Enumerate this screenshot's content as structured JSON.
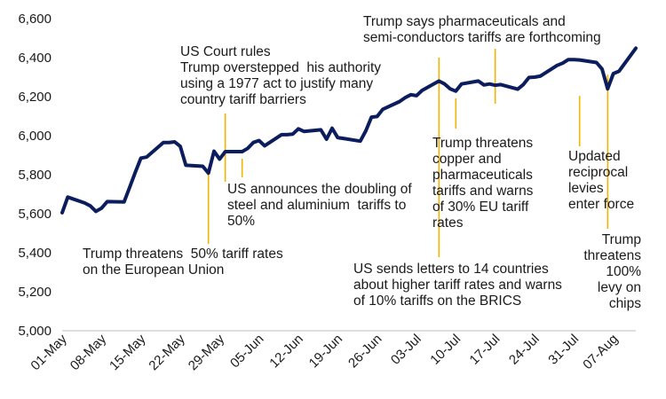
{
  "chart_data": {
    "type": "line",
    "ylim": [
      5000,
      6600
    ],
    "yticks": [
      "5,000",
      "5,200",
      "5,400",
      "5,600",
      "5,800",
      "6,000",
      "6,200",
      "6,400",
      "6,600"
    ],
    "ytick_values": [
      5000,
      5200,
      5400,
      5600,
      5800,
      6000,
      6200,
      6400,
      6600
    ],
    "xticks": [
      "01-May",
      "08-May",
      "15-May",
      "22-May",
      "29-May",
      "05-Jun",
      "12-Jun",
      "19-Jun",
      "26-Jun",
      "03-Jul",
      "10-Jul",
      "17-Jul",
      "24-Jul",
      "31-Jul",
      "07-Aug"
    ],
    "xlim": [
      0,
      102
    ],
    "grid": false,
    "line_color": "#0c1d5e",
    "annotation_color": "#f2b400",
    "series": [
      {
        "x": [
          0,
          1,
          4,
          5,
          6,
          7,
          8,
          11,
          12,
          13,
          14,
          15,
          18,
          19,
          20,
          21,
          22,
          25,
          26,
          27,
          28,
          29,
          32,
          33,
          34,
          35,
          36,
          39,
          40,
          41,
          42,
          43,
          46,
          47,
          48,
          49,
          50,
          53,
          54,
          55,
          56,
          57,
          60,
          61,
          62,
          63,
          64,
          67,
          68,
          69,
          70,
          71,
          74,
          75,
          76,
          77,
          78,
          81,
          82,
          83,
          84,
          85,
          88,
          89,
          90,
          91,
          92,
          95,
          96,
          97,
          98,
          99,
          102
        ],
        "y": [
          5605,
          5685,
          5655,
          5640,
          5612,
          5628,
          5662,
          5660,
          5735,
          5812,
          5885,
          5890,
          5965,
          5965,
          5968,
          5945,
          5848,
          5843,
          5808,
          5920,
          5880,
          5918,
          5918,
          5935,
          5965,
          5975,
          5948,
          6005,
          6005,
          6008,
          6035,
          6022,
          6030,
          5982,
          6038,
          5990,
          5986,
          5972,
          6025,
          6095,
          6098,
          6135,
          6175,
          6195,
          6210,
          6205,
          6232,
          6280,
          6265,
          6240,
          6228,
          6265,
          6280,
          6260,
          6265,
          6258,
          6262,
          6238,
          6262,
          6298,
          6300,
          6305,
          6360,
          6372,
          6390,
          6390,
          6388,
          6375,
          6342,
          6240,
          6318,
          6330,
          6448
        ]
      }
    ],
    "annotations": [
      {
        "text": "Trump threatens  50% tariff rates\non the European Union",
        "x": 26,
        "y": 5808
      },
      {
        "text": "US Court rules\nTrump overstepped  his authority\nusing a 1977 act to justify many\ncountry tariff barriers",
        "x": 29,
        "y": 5922
      },
      {
        "text": "US announces the doubling of\nsteel and aluminium  tariffs to\n50%",
        "x": 32,
        "y": 5918
      },
      {
        "text": "US sends letters to 14 countries\nabout higher tariff rates and warns\nof 10% tariffs on the BRICS",
        "x": 67,
        "y": 6280
      },
      {
        "text": "Trump threatens\ncopper and\npharmaceuticals\ntariffs and warns\nof 30% EU tariff\nrates",
        "x": 70,
        "y": 6228
      },
      {
        "text": "Trump says pharmaceuticals and\nsemi-conductors tariffs are forthcoming",
        "x": 77,
        "y": 6258
      },
      {
        "text": "Updated\nreciprocal\nlevies\nenter force",
        "x": 92,
        "y": 6240
      },
      {
        "text": "Trump\nthreatens\n100%\nlevy on\nchips",
        "x": 97,
        "y": 6340
      }
    ]
  }
}
